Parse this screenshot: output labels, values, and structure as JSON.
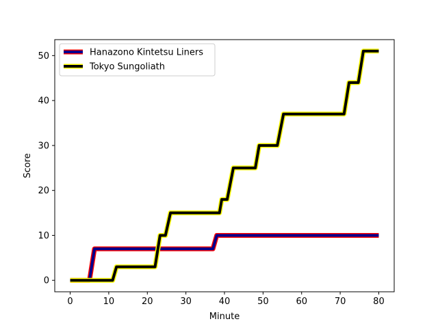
{
  "chart_data": {
    "type": "line",
    "title": "",
    "xlabel": "Minute",
    "ylabel": "Score",
    "xlim": [
      -4,
      84
    ],
    "ylim": [
      -2.55,
      53.55
    ],
    "xticks": [
      0,
      10,
      20,
      30,
      40,
      50,
      60,
      70,
      80
    ],
    "yticks": [
      0,
      10,
      20,
      30,
      40,
      50
    ],
    "grid": false,
    "legend": "top-left",
    "series": [
      {
        "name": "Hanazono Kintetsu Liners",
        "color": "#00008b",
        "edge_color": "#ff0000",
        "x": [
          0,
          5,
          6.3,
          37,
          38,
          80
        ],
        "y": [
          0,
          0,
          7,
          7,
          10,
          10
        ]
      },
      {
        "name": "Tokyo Sungoliath",
        "color": "#000000",
        "edge_color": "#ffff00",
        "x": [
          0,
          11,
          12,
          22,
          23.3,
          24.7,
          26,
          38.7,
          39.3,
          40.7,
          42.3,
          48,
          49,
          53.7,
          55.3,
          71,
          72.3,
          74.7,
          76,
          80
        ],
        "y": [
          0,
          0,
          3,
          3,
          10,
          10,
          15,
          15,
          18,
          18,
          25,
          25,
          30,
          30,
          37,
          37,
          44,
          44,
          51,
          51
        ]
      }
    ]
  }
}
